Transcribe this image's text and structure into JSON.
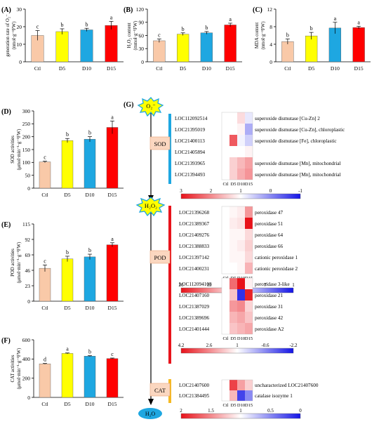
{
  "colors": {
    "ctl": "#f9c9a8",
    "d5": "#ffff00",
    "d10": "#1ea7e1",
    "d15": "#ff0000",
    "blue_bar": "#1ea7e1",
    "red_bar": "#e8141c",
    "cat_bar": "#f5b922",
    "h2o_fill": "#1ea7e1"
  },
  "chart_data": [
    {
      "type": "bar",
      "panel": "(A)",
      "ylabel_lines": [
        "generation rate of O₂⁻",
        "(nmol·g⁻¹FW)"
      ],
      "categories": [
        "Ctl",
        "D5",
        "D10",
        "D15"
      ],
      "values": [
        15.0,
        17.2,
        18.2,
        20.7
      ],
      "errors": [
        2.8,
        1.6,
        0.9,
        2.3
      ],
      "letters": [
        "c",
        "b",
        "b",
        "a"
      ],
      "ylim": [
        0,
        30
      ],
      "yticks": [
        "0",
        "10",
        "20",
        "30"
      ]
    },
    {
      "type": "bar",
      "panel": "(B)",
      "ylabel_lines": [
        "H₂O₂ content",
        "(mmol·g⁻¹FW)"
      ],
      "categories": [
        "Ctl",
        "D5",
        "D10",
        "D15"
      ],
      "values": [
        48,
        63,
        66,
        84
      ],
      "errors": [
        4,
        3,
        3,
        4
      ],
      "letters": [
        "c",
        "b",
        "b",
        "a"
      ],
      "ylim": [
        0,
        120
      ],
      "yticks": [
        "0",
        "30",
        "60",
        "90",
        "120"
      ]
    },
    {
      "type": "bar",
      "panel": "(C)",
      "ylabel_lines": [
        "MDA content",
        "(nmol·g⁻¹FW)"
      ],
      "categories": [
        "Ctl",
        "D5",
        "D10",
        "D15"
      ],
      "values": [
        4.6,
        5.9,
        7.7,
        7.8
      ],
      "errors": [
        0.6,
        0.8,
        1.3,
        0.3
      ],
      "letters": [
        "b",
        "b",
        "a",
        "a"
      ],
      "ylim": [
        0,
        12
      ],
      "yticks": [
        "0",
        "4",
        "8",
        "12"
      ]
    },
    {
      "type": "bar",
      "panel": "(D)",
      "ylabel_lines": [
        "SOD activities",
        "(μmol·min⁻¹·g⁻¹FW)"
      ],
      "categories": [
        "Ctl",
        "D5",
        "D10",
        "D15"
      ],
      "values": [
        102,
        185,
        190,
        236
      ],
      "errors": [
        3,
        8,
        10,
        25
      ],
      "letters": [
        "c",
        "b",
        "b",
        "a"
      ],
      "ylim": [
        0,
        300
      ],
      "yticks": [
        "0",
        "50",
        "100",
        "150",
        "200",
        "250",
        "300"
      ]
    },
    {
      "type": "bar",
      "panel": "(E)",
      "ylabel_lines": [
        "POD activities",
        "(μmol·min⁻¹·g⁻¹FW)"
      ],
      "categories": [
        "Ctl",
        "D5",
        "D10",
        "D15"
      ],
      "values": [
        49,
        63,
        66,
        84
      ],
      "errors": [
        5,
        4,
        4,
        3
      ],
      "letters": [
        "c",
        "b",
        "b",
        "a"
      ],
      "ylim": [
        0,
        115
      ],
      "yticks": [
        "0",
        "23",
        "46",
        "69",
        "92",
        "115"
      ]
    },
    {
      "type": "bar",
      "panel": "(F)",
      "ylabel_lines": [
        "CAT activities",
        "(μmol·min⁻¹·g⁻¹FW)"
      ],
      "categories": [
        "Ctl",
        "D5",
        "D10",
        "D15"
      ],
      "values": [
        350,
        458,
        430,
        405
      ],
      "errors": [
        4,
        5,
        5,
        5
      ],
      "letters": [
        "d",
        "a",
        "b",
        "c"
      ],
      "ylim": [
        0,
        600
      ],
      "yticks": [
        "0",
        "200",
        "400",
        "600"
      ]
    },
    {
      "type": "heatmap",
      "panel": "(G)",
      "pathway_nodes": [
        "O₂⁻",
        "H₂O₂",
        "H₂O"
      ],
      "enzyme_labels": [
        "SOD",
        "POD",
        "CAT"
      ],
      "columns": [
        "Ctl",
        "D5",
        "D10",
        "D15"
      ],
      "blocks": [
        {
          "genes": [
            "LOC112092514",
            "LOC21395019",
            "LOC21400113",
            "LOC21405894",
            "LOC21393965",
            "LOC21394493"
          ],
          "annotations": [
            "superoxide dismutase [Cu-Zn] 2",
            "superoxide dismutase [Cu-Zn], chloroplastic",
            "superoxide dismutase [Fe], chloroplastic",
            "",
            "superoxide dismutase [Mn], mitochondrial",
            "superoxide dismutase [Mn], mitochondrial"
          ],
          "values": [
            [
              1.0,
              1.0,
              1.3,
              0.8
            ],
            [
              1.0,
              1.0,
              1.1,
              0.3
            ],
            [
              1.0,
              2.4,
              0.9,
              0.6
            ],
            [
              1.0,
              1.0,
              1.0,
              1.1
            ],
            [
              1.0,
              1.4,
              1.6,
              1.8
            ],
            [
              1.0,
              1.4,
              1.7,
              1.9
            ]
          ],
          "scale_ticks": [
            "3",
            "2",
            "1",
            "0",
            "-1"
          ],
          "scale_min": -1,
          "scale_mid": 1,
          "scale_max": 3
        },
        {
          "genes": [
            "LOC21396268",
            "LOC21389367",
            "LOC21409276",
            "LOC21388833",
            "LOC21397142",
            "LOC21400231"
          ],
          "annotations": [
            "peroxidase 47",
            "peroxidase 51",
            "peroxidase 64",
            "peroxidase 66",
            "cationic peroxidase 1",
            "cationic peroxidase 2"
          ],
          "values": [
            [
              1,
              2,
              3,
              12
            ],
            [
              1,
              3,
              4,
              26
            ],
            [
              1,
              2,
              2,
              5
            ],
            [
              1,
              2,
              3,
              6
            ],
            [
              1,
              2,
              2,
              5
            ],
            [
              1,
              1,
              2,
              9
            ]
          ],
          "scale_ticks": [
            "26",
            "19",
            "13",
            "7",
            "1"
          ],
          "scale_min": 1,
          "scale_mid": 1,
          "scale_max": 26
        },
        {
          "genes": [
            "LOC112094103",
            "LOC21407160",
            "LOC21387029",
            "LOC21389696",
            "LOC21401444"
          ],
          "annotations": [
            "peroxidase 3-like",
            "peroxidase 21",
            "peroxidase 31",
            "peroxidase 42",
            "peroxidase A2"
          ],
          "values": [
            [
              1,
              3.0,
              4.2,
              1.2
            ],
            [
              1,
              1.8,
              -1.8,
              4.0
            ],
            [
              1,
              2.4,
              2.6,
              1.6
            ],
            [
              1,
              2.0,
              2.2,
              1.8
            ],
            [
              1,
              1.8,
              2.0,
              2.2
            ]
          ],
          "scale_ticks": [
            "4.2",
            "2.6",
            "1",
            "-0.6",
            "-2.2"
          ],
          "scale_min": -2.2,
          "scale_mid": 1,
          "scale_max": 4.2
        },
        {
          "genes": [
            "LOC21407600",
            "LOC21384495"
          ],
          "annotations": [
            "uncharacterized LOC21407600",
            "catalase isozyme 1"
          ],
          "values": [
            [
              1.0,
              1.8,
              1.4,
              1.2
            ],
            [
              1.0,
              1.3,
              0.2,
              0.5
            ]
          ],
          "scale_ticks": [
            "2",
            "1.5",
            "1",
            "0.5",
            "0"
          ],
          "scale_min": 0,
          "scale_mid": 1,
          "scale_max": 2
        }
      ]
    }
  ]
}
